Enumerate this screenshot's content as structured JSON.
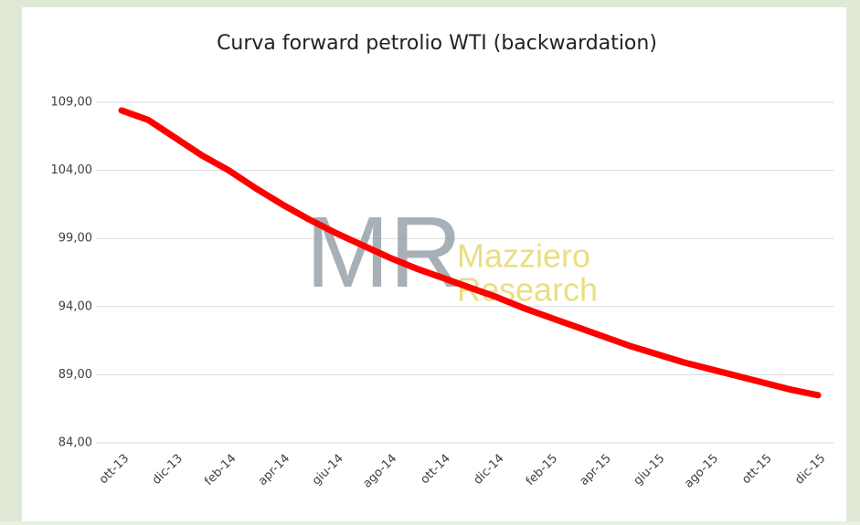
{
  "chart_data": {
    "type": "line",
    "title": "Curva forward petrolio WTI (backwardation)",
    "watermark": {
      "logo": "MR",
      "lines": [
        "Mazziero",
        "Research"
      ]
    },
    "categories": [
      "ott-13",
      null,
      "dic-13",
      null,
      "feb-14",
      null,
      "apr-14",
      null,
      "giu-14",
      null,
      "ago-14",
      null,
      "ott-14",
      null,
      "dic-14",
      null,
      "feb-15",
      null,
      "apr-15",
      null,
      "giu-15",
      null,
      "ago-15",
      null,
      "ott-15",
      null,
      "dic-15"
    ],
    "series": [
      {
        "name": "WTI",
        "color": "#ff0000",
        "values": [
          108.4,
          107.7,
          106.4,
          105.1,
          104.0,
          102.7,
          101.5,
          100.4,
          99.4,
          98.5,
          97.6,
          96.8,
          96.1,
          95.4,
          94.7,
          93.9,
          93.2,
          92.5,
          91.8,
          91.1,
          90.5,
          89.9,
          89.4,
          88.9,
          88.4,
          87.9,
          87.5
        ]
      }
    ],
    "ylim": [
      84,
      109
    ],
    "yticks": [
      {
        "value": 84,
        "label": "84,00"
      },
      {
        "value": 89,
        "label": "89,00"
      },
      {
        "value": 94,
        "label": "94,00"
      },
      {
        "value": 99,
        "label": "99,00"
      },
      {
        "value": 104,
        "label": "104,00"
      },
      {
        "value": 109,
        "label": "109,00"
      }
    ],
    "grid": true
  }
}
